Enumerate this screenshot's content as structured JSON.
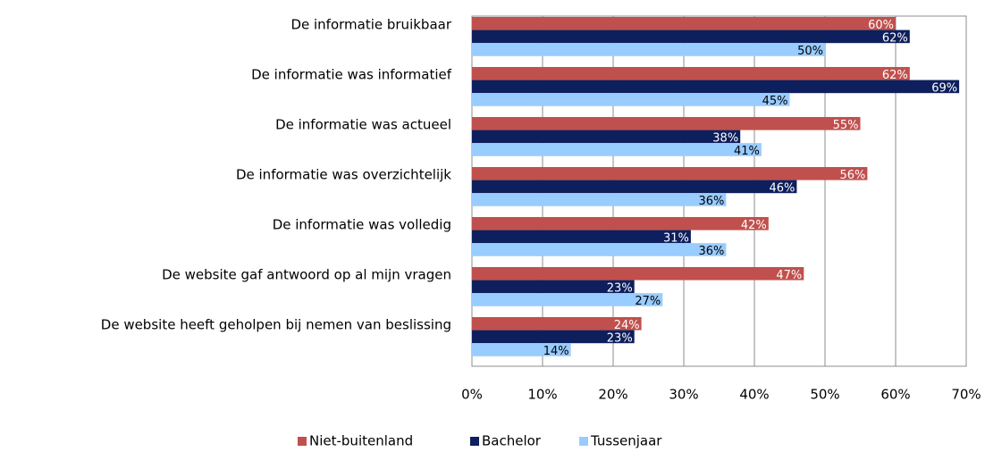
{
  "chart_data": {
    "type": "hbar",
    "categories": [
      "De informatie bruikbaar",
      "De informatie was informatief",
      "De informatie was actueel",
      "De informatie was overzichtelijk",
      "De informatie was volledig",
      "De website gaf antwoord op al mijn vragen",
      "De website heeft geholpen bij nemen van beslissing"
    ],
    "series": [
      {
        "name": "Niet-buitenland",
        "color": "#c0504d",
        "label_color": "#ffffff",
        "values": [
          60,
          62,
          55,
          56,
          42,
          47,
          24
        ],
        "value_labels": [
          "60%",
          "62%",
          "55%",
          "56%",
          "42%",
          "47%",
          "24%"
        ]
      },
      {
        "name": "Bachelor",
        "color": "#0d1f5c",
        "label_color": "#ffffff",
        "values": [
          62,
          69,
          38,
          46,
          31,
          23,
          23
        ],
        "value_labels": [
          "62%",
          "69%",
          "38%",
          "46%",
          "31%",
          "23%",
          "23%"
        ]
      },
      {
        "name": "Tussenjaar",
        "color": "#99ccff",
        "label_color": "#000000",
        "values": [
          50,
          45,
          41,
          36,
          36,
          27,
          14
        ],
        "value_labels": [
          "50%",
          "45%",
          "41%",
          "36%",
          "36%",
          "27%",
          "14%"
        ]
      }
    ],
    "xlim": [
      0,
      70
    ],
    "xticks": [
      {
        "value": 0,
        "label": "0%"
      },
      {
        "value": 10,
        "label": "10%"
      },
      {
        "value": 20,
        "label": "20%"
      },
      {
        "value": 30,
        "label": "30%"
      },
      {
        "value": 40,
        "label": "40%"
      },
      {
        "value": 50,
        "label": "50%"
      },
      {
        "value": 60,
        "label": "60%"
      },
      {
        "value": 70,
        "label": "70%"
      }
    ],
    "grid": true,
    "legend": "bottom"
  }
}
